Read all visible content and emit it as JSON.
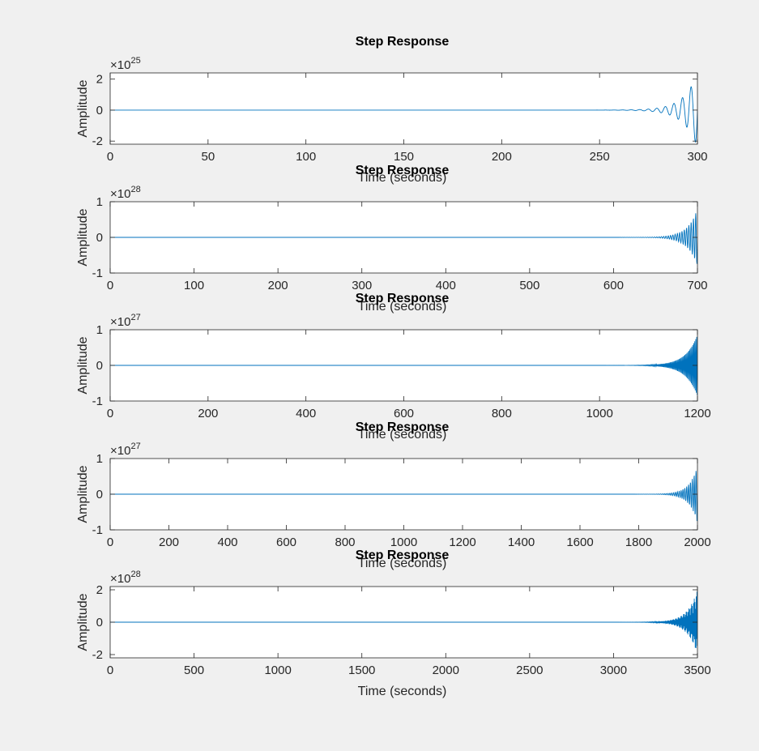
{
  "colors": {
    "background": "#f0f0f0",
    "axes_background": "#ffffff",
    "axes_border": "#262626",
    "line": "#0072bd"
  },
  "chart_data": [
    {
      "type": "line",
      "title": "Step Response",
      "xlabel": "Time (seconds)",
      "ylabel": "Amplitude",
      "xlim": [
        0,
        300
      ],
      "ylim": [
        -2.2,
        2.4
      ],
      "xticks": [
        0,
        50,
        100,
        150,
        200,
        250,
        300
      ],
      "yticks": [
        -2,
        0,
        2
      ],
      "exponent_base": "×10",
      "exponent_power": "25",
      "grid": false,
      "series": [
        {
          "growth_start": 265,
          "end": 300,
          "end_amplitude": 2.4,
          "cycles": 8
        }
      ]
    },
    {
      "type": "line",
      "title": "Step Response",
      "xlabel": "Time (seconds)",
      "ylabel": "Amplitude",
      "xlim": [
        0,
        700
      ],
      "ylim": [
        -1,
        1
      ],
      "xticks": [
        0,
        100,
        200,
        300,
        400,
        500,
        600,
        700
      ],
      "yticks": [
        -1,
        0,
        1
      ],
      "exponent_base": "×10",
      "exponent_power": "28",
      "grid": false,
      "series": [
        {
          "growth_start": 640,
          "end": 700,
          "end_amplitude": 0.8,
          "cycles": 22
        }
      ]
    },
    {
      "type": "line",
      "title": "Step Response",
      "xlabel": "Time (seconds)",
      "ylabel": "Amplitude",
      "xlim": [
        0,
        1200
      ],
      "ylim": [
        -1,
        1
      ],
      "xticks": [
        0,
        200,
        400,
        600,
        800,
        1000,
        1200
      ],
      "yticks": [
        -1,
        0,
        1
      ],
      "exponent_base": "×10",
      "exponent_power": "27",
      "grid": false,
      "series": [
        {
          "growth_start": 1080,
          "end": 1200,
          "end_amplitude": 0.85,
          "cycles": 60
        }
      ]
    },
    {
      "type": "line",
      "title": "Step Response",
      "xlabel": "Time (seconds)",
      "ylabel": "Amplitude",
      "xlim": [
        0,
        2000
      ],
      "ylim": [
        -1,
        1
      ],
      "xticks": [
        0,
        200,
        400,
        600,
        800,
        1000,
        1200,
        1400,
        1600,
        1800,
        2000
      ],
      "yticks": [
        -1,
        0,
        1
      ],
      "exponent_base": "×10",
      "exponent_power": "27",
      "grid": false,
      "series": [
        {
          "growth_start": 1860,
          "end": 2000,
          "end_amplitude": 0.8,
          "cycles": 22
        }
      ]
    },
    {
      "type": "line",
      "title": "Step Response",
      "xlabel": "Time (seconds)",
      "ylabel": "Amplitude",
      "xlim": [
        0,
        3500
      ],
      "ylim": [
        -2.2,
        2.2
      ],
      "xticks": [
        0,
        500,
        1000,
        1500,
        2000,
        2500,
        3000,
        3500
      ],
      "yticks": [
        -2,
        0,
        2
      ],
      "exponent_base": "×10",
      "exponent_power": "28",
      "grid": false,
      "series": [
        {
          "growth_start": 3200,
          "end": 3500,
          "end_amplitude": 2.0,
          "cycles": 75
        }
      ]
    }
  ]
}
